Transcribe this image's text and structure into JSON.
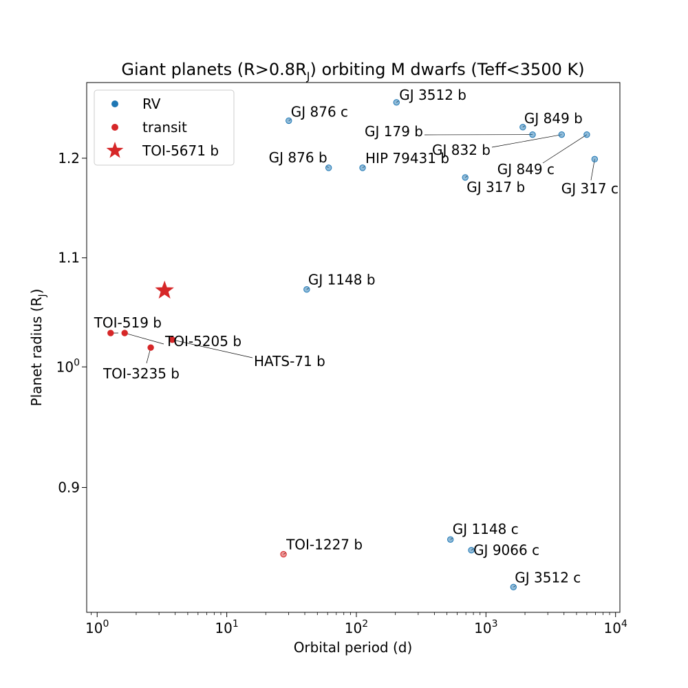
{
  "chart_data": {
    "type": "scatter",
    "title_main": "Giant planets (R>0.8R",
    "title_sub": "J",
    "title_rest": ") orbiting M dwarfs (Teff<3500 K)",
    "xlabel": "Orbital period (d)",
    "ylabel_main": "Planet radius (R",
    "ylabel_sub": "J",
    "ylabel_rest": ")",
    "x_scale": "log",
    "y_scale": "log",
    "xlim": [
      0.83,
      10800
    ],
    "ylim": [
      0.807,
      1.282
    ],
    "grid": false,
    "legend_position": "top-left",
    "x_ticks": [
      {
        "value": 1,
        "base": "10",
        "exp": "0"
      },
      {
        "value": 10,
        "base": "10",
        "exp": "1"
      },
      {
        "value": 100,
        "base": "10",
        "exp": "2"
      },
      {
        "value": 1000,
        "base": "10",
        "exp": "3"
      },
      {
        "value": 10000,
        "base": "10",
        "exp": "4"
      }
    ],
    "y_ticks": [
      {
        "value": 0.9,
        "label": "0.9"
      },
      {
        "value": 1.0,
        "label": "10",
        "exp": "0"
      },
      {
        "value": 1.1,
        "label": "1.1"
      },
      {
        "value": 1.2,
        "label": "1.2"
      }
    ],
    "colors": {
      "rv": "#1f77b4",
      "transit": "#d62728",
      "highlight": "#d62728"
    },
    "legend": [
      {
        "label": "RV",
        "marker": "circle",
        "color": "#1f77b4"
      },
      {
        "label": "transit",
        "marker": "circle",
        "color": "#d62728"
      },
      {
        "label": "TOI-5671 b",
        "marker": "star",
        "color": "#d62728"
      }
    ],
    "series": [
      {
        "name": "RV",
        "color": "#1f77b4",
        "points": [
          {
            "label": "GJ 3512 b",
            "x": 204,
            "y": 1.26
          },
          {
            "label": "GJ 876 c",
            "x": 30.1,
            "y": 1.24
          },
          {
            "label": "GJ 179 b",
            "x": 2288,
            "y": 1.225
          },
          {
            "label": "GJ 849 b",
            "x": 1924,
            "y": 1.233
          },
          {
            "label": "GJ 832 b",
            "x": 3837,
            "y": 1.225
          },
          {
            "label": "GJ 849 c",
            "x": 6000,
            "y": 1.225
          },
          {
            "label": "GJ 317 c",
            "x": 6900,
            "y": 1.199
          },
          {
            "label": "GJ 876 b",
            "x": 61.1,
            "y": 1.19
          },
          {
            "label": "HIP 79431 b",
            "x": 111.7,
            "y": 1.19
          },
          {
            "label": "GJ 317 b",
            "x": 692,
            "y": 1.18
          },
          {
            "label": "GJ 1148 b",
            "x": 41.4,
            "y": 1.07
          },
          {
            "label": "GJ 1148 c",
            "x": 532,
            "y": 0.86
          },
          {
            "label": "GJ 9066 c",
            "x": 771,
            "y": 0.852
          },
          {
            "label": "GJ 3512 c",
            "x": 1630,
            "y": 0.825
          }
        ]
      },
      {
        "name": "transit",
        "color": "#d62728",
        "points": [
          {
            "label": "TOI-519 b",
            "x": 1.27,
            "y": 1.03
          },
          {
            "label": "TOI-5205 b",
            "x": 1.63,
            "y": 1.03
          },
          {
            "label": "HATS-71 b",
            "x": 3.8,
            "y": 1.024
          },
          {
            "label": "TOI-3235 b",
            "x": 2.59,
            "y": 1.017
          },
          {
            "label": "TOI-1227 b",
            "x": 27.4,
            "y": 0.849,
            "faded": true
          }
        ]
      },
      {
        "name": "TOI-5671 b",
        "color": "#d62728",
        "marker": "star",
        "points": [
          {
            "label": "TOI-5671 b",
            "x": 3.31,
            "y": 1.069
          }
        ]
      }
    ]
  }
}
